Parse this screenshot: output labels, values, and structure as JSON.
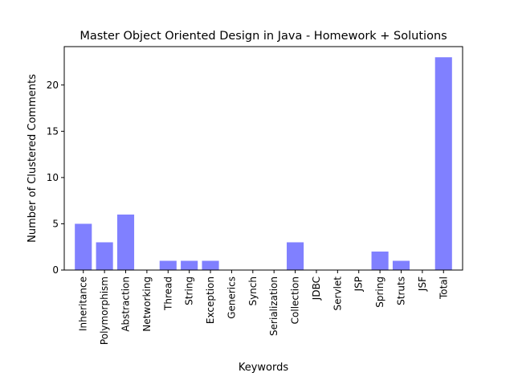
{
  "chart_data": {
    "type": "bar",
    "title": "Master Object Oriented Design in Java - Homework + Solutions",
    "xlabel": "Keywords",
    "ylabel": "Number of Clustered Comments",
    "categories": [
      "Inheritance",
      "Polymorphism",
      "Abstraction",
      "Networking",
      "Thread",
      "String",
      "Exception",
      "Generics",
      "Synch",
      "Serialization",
      "Collection",
      "JDBC",
      "Servlet",
      "JSP",
      "Spring",
      "Struts",
      "JSF",
      "Total"
    ],
    "values": [
      5,
      3,
      6,
      0,
      1,
      1,
      1,
      0,
      0,
      0,
      3,
      0,
      0,
      0,
      2,
      1,
      0,
      23
    ],
    "ylim": [
      0,
      24.15
    ],
    "yticks": [
      0,
      5,
      10,
      15,
      20
    ],
    "bar_color": "#8080ff",
    "grid": false,
    "legend": "none"
  }
}
